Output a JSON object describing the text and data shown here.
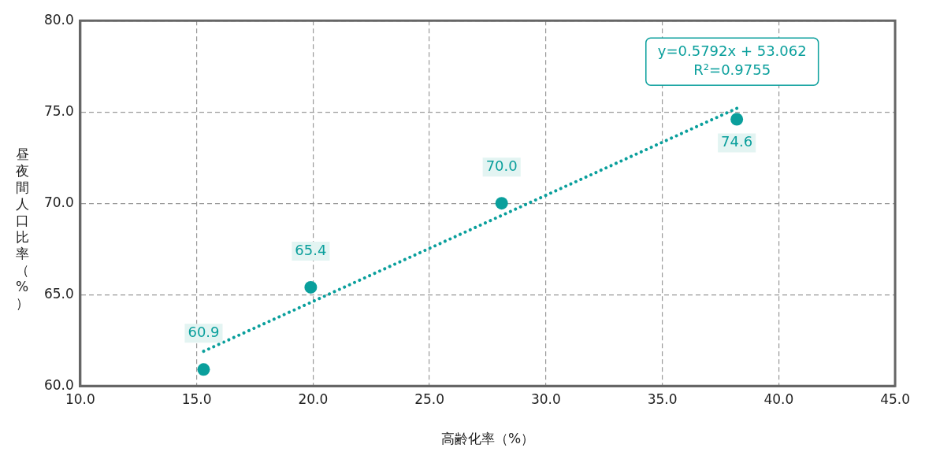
{
  "chart_data": {
    "type": "scatter",
    "xlabel": "高齢化率（%）",
    "ylabel": "昼夜間人口比率（%）",
    "xlim": [
      10,
      45
    ],
    "xticks": [
      {
        "value": 10,
        "label": "10.0"
      },
      {
        "value": 15,
        "label": "15.0"
      },
      {
        "value": 20,
        "label": "20.0"
      },
      {
        "value": 25,
        "label": "25.0"
      },
      {
        "value": 30,
        "label": "30.0"
      },
      {
        "value": 35,
        "label": "35.0"
      },
      {
        "value": 40,
        "label": "40.0"
      },
      {
        "value": 45,
        "label": "45.0"
      }
    ],
    "ylim": [
      60,
      80
    ],
    "yticks": [
      {
        "value": 60,
        "label": "60.0"
      },
      {
        "value": 65,
        "label": "65.0"
      },
      {
        "value": 70,
        "label": "70.0"
      },
      {
        "value": 75,
        "label": "75.0"
      },
      {
        "value": 80,
        "label": "80.0"
      }
    ],
    "grid": true,
    "marker": "circle",
    "series": [
      {
        "type": "scatter",
        "color": "#0a9f9c",
        "x": [
          15.3,
          19.9,
          28.1,
          38.2
        ],
        "values": [
          60.9,
          65.4,
          70.0,
          74.6
        ],
        "value_labels": [
          "60.9",
          "65.4",
          "70.0",
          "74.6"
        ]
      },
      {
        "type": "line",
        "color": "#0a9f9c",
        "x": [
          15.3,
          38.2
        ],
        "values": [
          61.9,
          75.2
        ],
        "marker": "none",
        "line_style": "dotted"
      }
    ],
    "annotations": [
      "y=0.5792x + 53.062",
      "R²=0.9755"
    ]
  }
}
